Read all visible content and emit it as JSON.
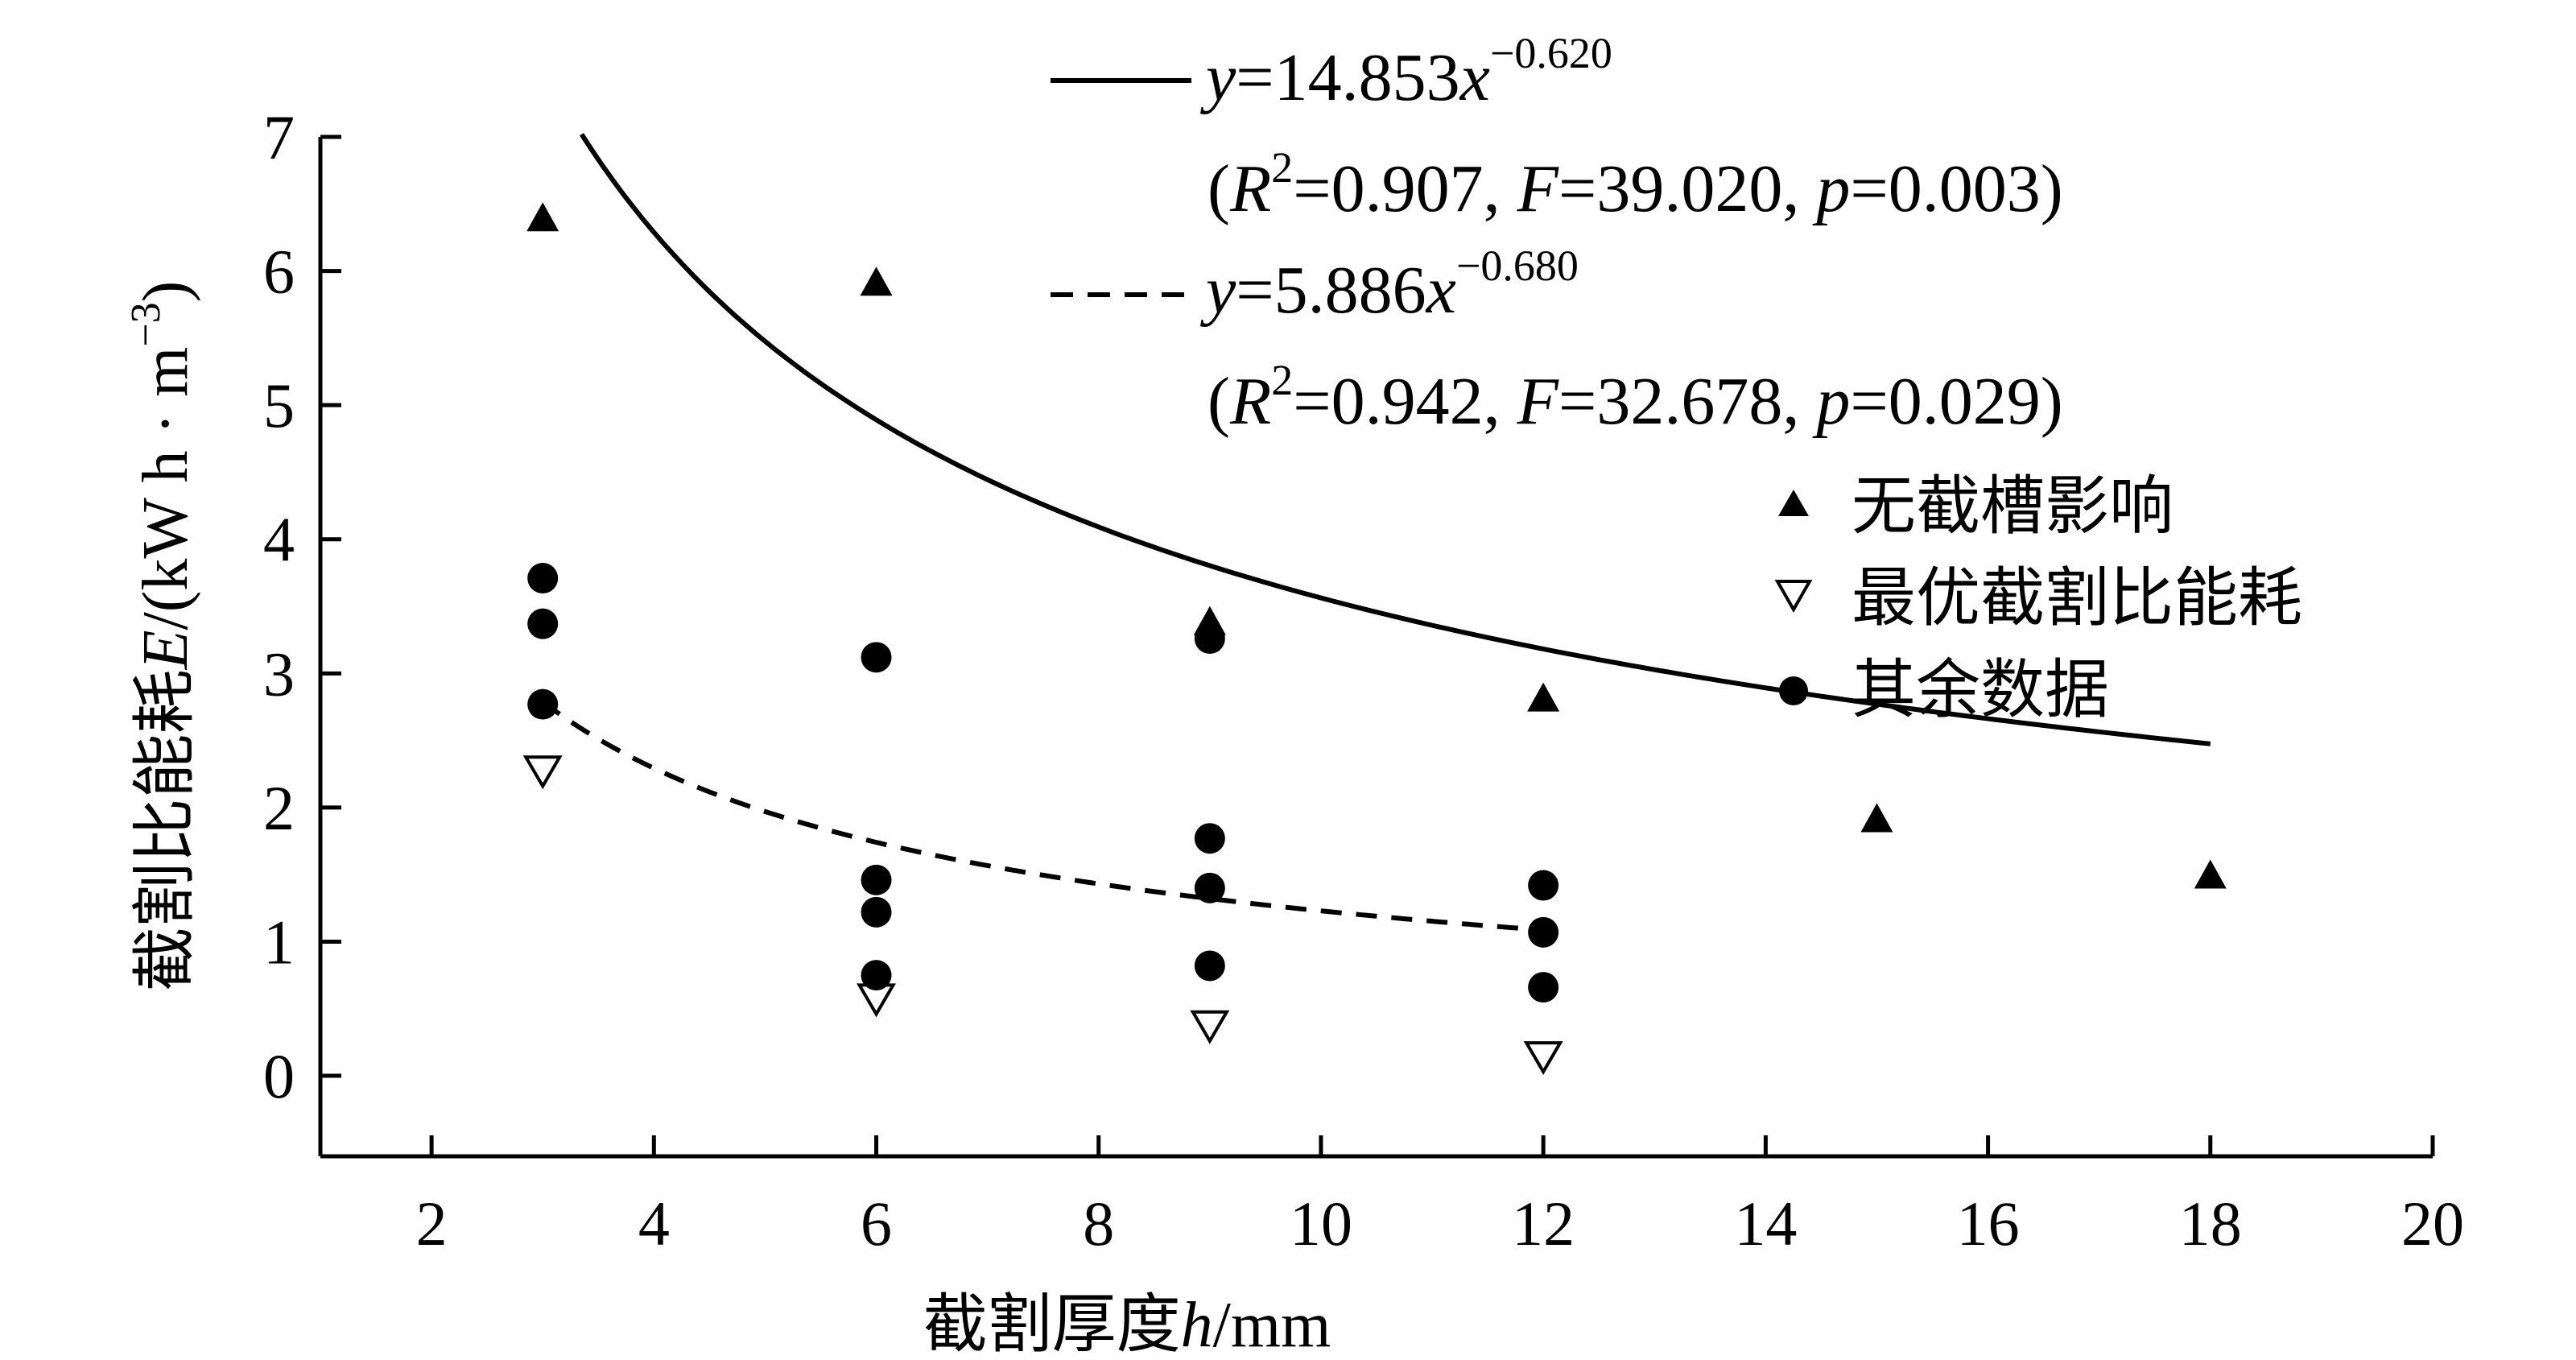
{
  "chart_data": {
    "type": "scatter",
    "xlabel": "截割厚度h/mm",
    "xlabel_parts": {
      "prefix": "截割厚度",
      "var": "h",
      "unit": "/mm"
    },
    "ylabel": "截割比能耗E/(kW h · m⁻³)",
    "ylabel_parts": {
      "prefix": "截割比能耗",
      "var": "E",
      "unit": "/(kW h · m",
      "exp": "−3",
      "close": ")"
    },
    "xlim": [
      1,
      20
    ],
    "ylim": [
      -0.6,
      7
    ],
    "xticks": [
      2,
      4,
      6,
      8,
      10,
      12,
      14,
      16,
      18,
      20
    ],
    "yticks": [
      0,
      1,
      2,
      3,
      4,
      5,
      6,
      7
    ],
    "grid": false,
    "legend_position": "right",
    "series": [
      {
        "name": "无截槽影响",
        "marker": "triangle-up-filled",
        "points": [
          [
            3,
            6.38
          ],
          [
            6,
            5.9
          ],
          [
            9,
            3.37
          ],
          [
            12,
            2.8
          ],
          [
            15,
            1.9
          ],
          [
            18,
            1.48
          ]
        ]
      },
      {
        "name": "最优截割比能耗",
        "marker": "triangle-down-open",
        "points": [
          [
            3,
            2.28
          ],
          [
            6,
            0.58
          ],
          [
            9,
            0.38
          ],
          [
            12,
            0.15
          ]
        ]
      },
      {
        "name": "其余数据",
        "marker": "circle-filled",
        "points": [
          [
            3,
            3.71
          ],
          [
            3,
            3.37
          ],
          [
            3,
            2.77
          ],
          [
            6,
            3.12
          ],
          [
            6,
            1.46
          ],
          [
            6,
            1.22
          ],
          [
            6,
            0.75
          ],
          [
            9,
            3.26
          ],
          [
            9,
            1.77
          ],
          [
            9,
            1.4
          ],
          [
            9,
            0.82
          ],
          [
            12,
            1.42
          ],
          [
            12,
            1.07
          ],
          [
            12,
            0.66
          ]
        ]
      }
    ],
    "fits": [
      {
        "style": "solid",
        "a": 14.853,
        "b": -0.62,
        "x_range": [
          3.35,
          18
        ],
        "equation": {
          "lhs": "y",
          "eq": "=14.853",
          "x": "x",
          "exp": "−0.620"
        },
        "stats": {
          "open": "(",
          "R": "R",
          "R_exp": "2",
          "R_val": "=0.907, ",
          "F": "F",
          "F_val": "=39.020, ",
          "p": "p",
          "p_val": "=0.003)"
        }
      },
      {
        "style": "dashed",
        "a": 5.886,
        "b": -0.68,
        "x_range": [
          3,
          12
        ],
        "equation": {
          "lhs": "y",
          "eq": "=5.886",
          "x": "x",
          "exp": "−0.680"
        },
        "stats": {
          "open": "(",
          "R": "R",
          "R_exp": "2",
          "R_val": "=0.942, ",
          "F": "F",
          "F_val": "=32.678, ",
          "p": "p",
          "p_val": "=0.029)"
        }
      }
    ]
  }
}
